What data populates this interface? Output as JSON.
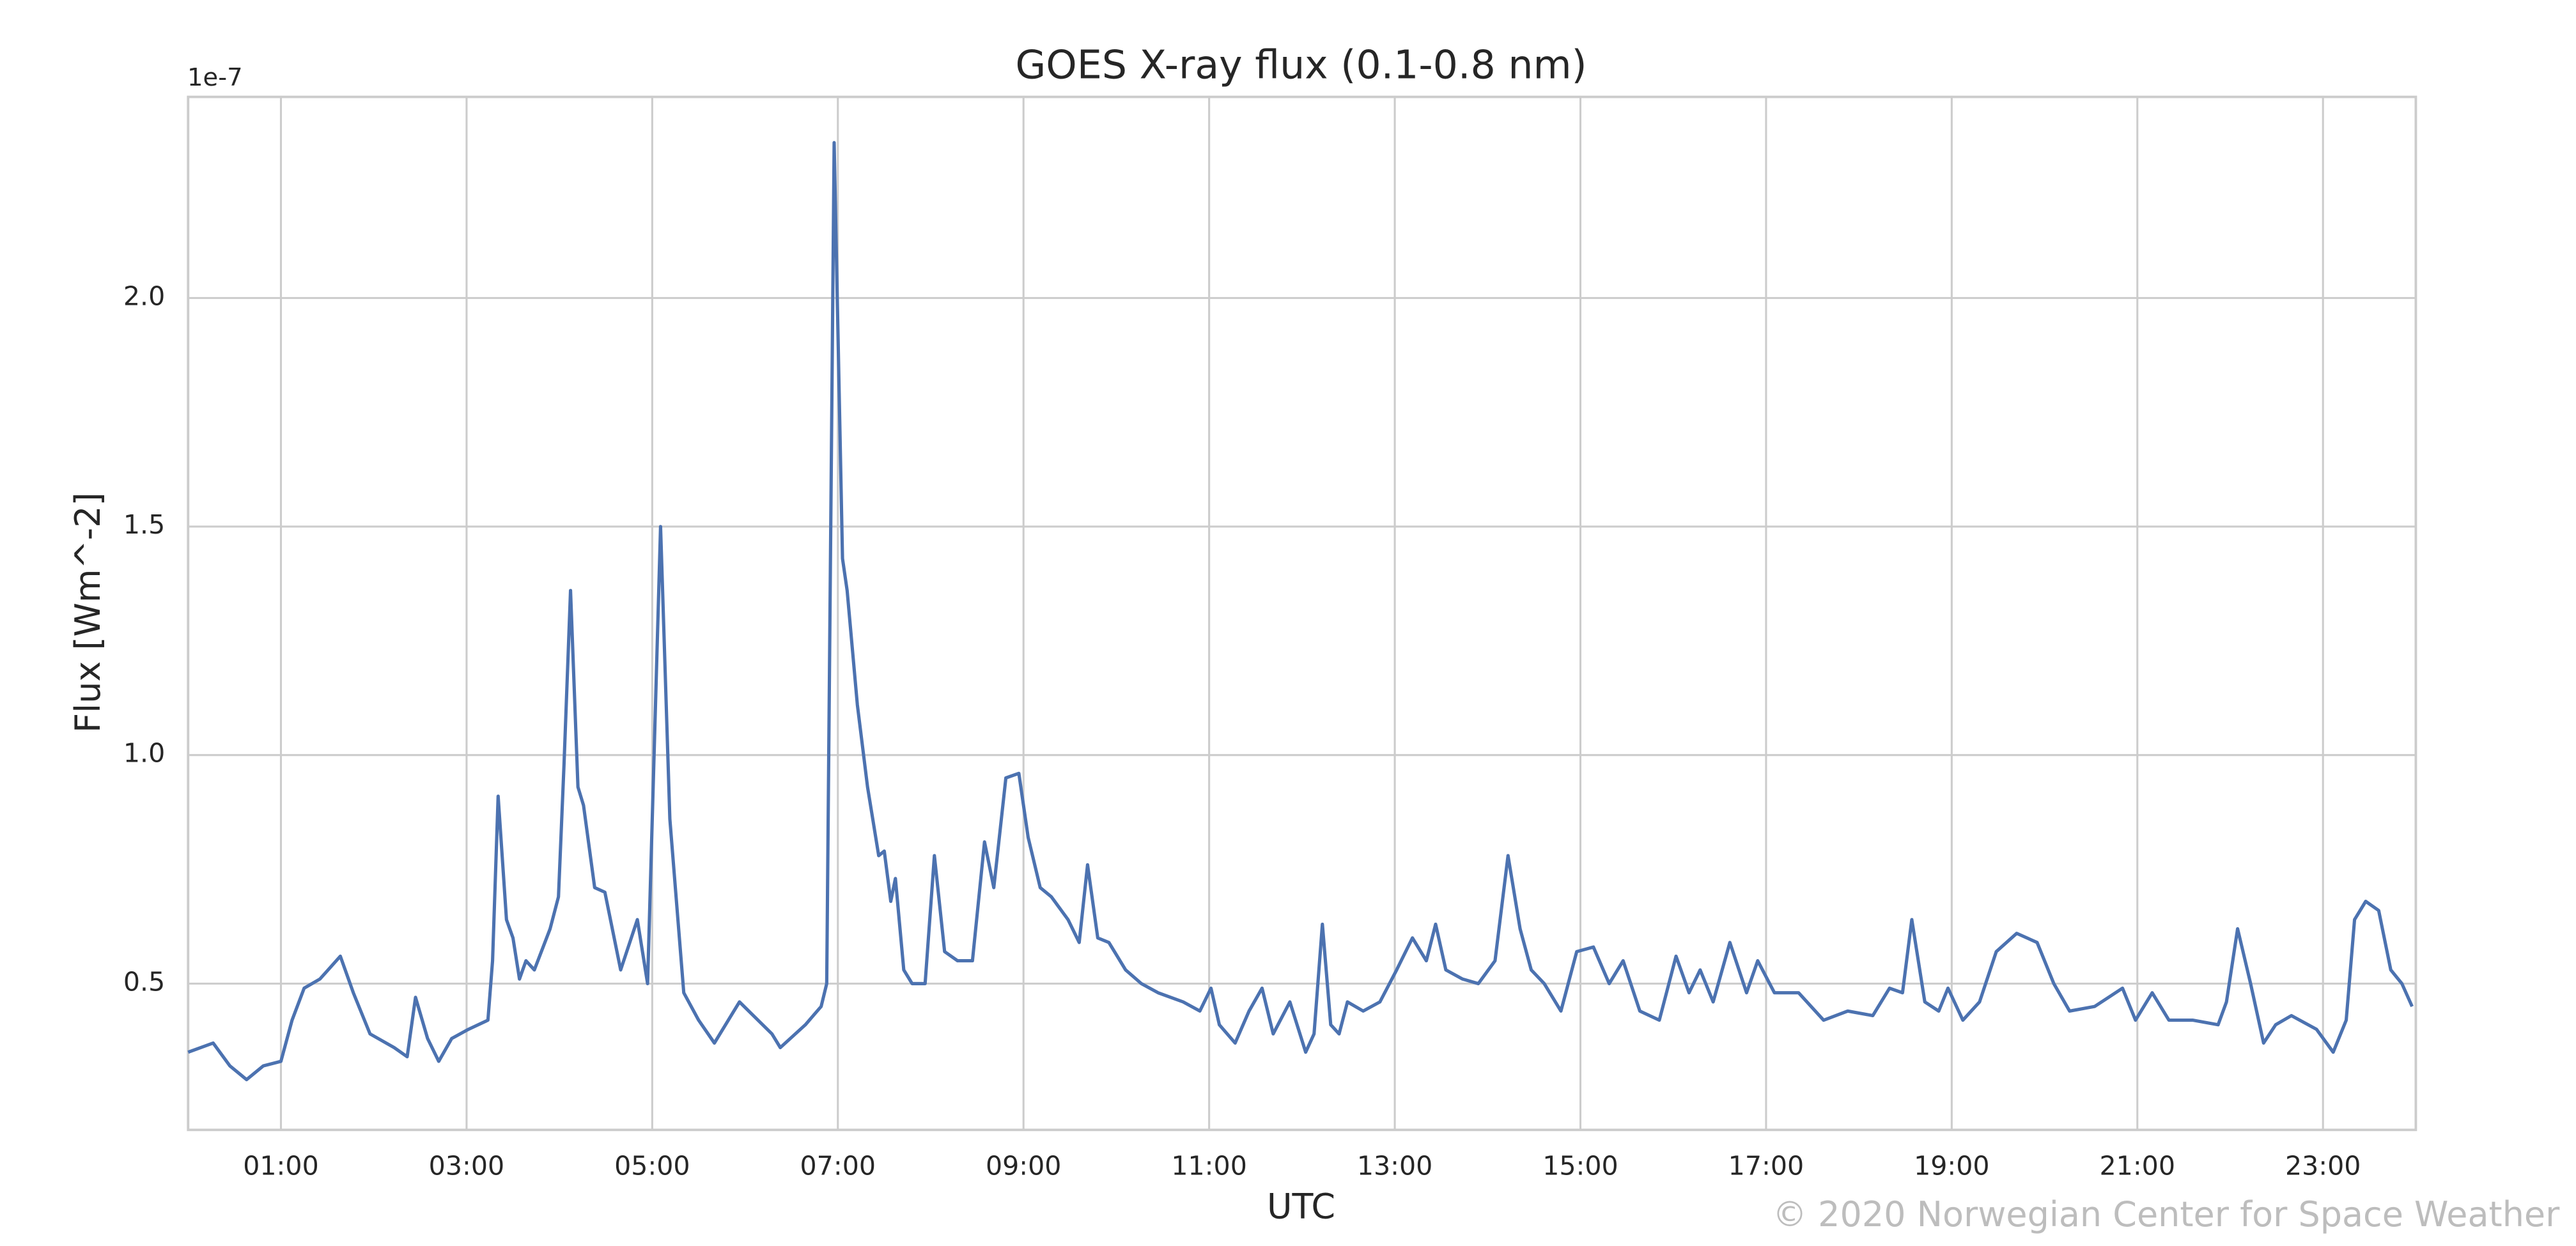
{
  "chart_data": {
    "type": "line",
    "title": "GOES X-ray flux (0.1-0.8 nm)",
    "x_label": "UTC",
    "y_label": "Flux [Wm^-2]",
    "y_offset_label": "1e-7",
    "credit": "© 2020 Norwegian Center for Space Weather",
    "grid": true,
    "xlim": [
      0,
      24
    ],
    "ylim": [
      0.18,
      2.44
    ],
    "xticks": [
      {
        "value": 1,
        "label": "01:00"
      },
      {
        "value": 3,
        "label": "03:00"
      },
      {
        "value": 5,
        "label": "05:00"
      },
      {
        "value": 7,
        "label": "07:00"
      },
      {
        "value": 9,
        "label": "09:00"
      },
      {
        "value": 11,
        "label": "11:00"
      },
      {
        "value": 13,
        "label": "13:00"
      },
      {
        "value": 15,
        "label": "15:00"
      },
      {
        "value": 17,
        "label": "17:00"
      },
      {
        "value": 19,
        "label": "19:00"
      },
      {
        "value": 21,
        "label": "21:00"
      },
      {
        "value": 23,
        "label": "23:00"
      }
    ],
    "yticks": [
      0.5,
      {
        "value": 1,
        "label": "1.0"
      },
      1.5,
      {
        "value": 2,
        "label": "2.0"
      }
    ],
    "x": [
      0,
      0.27,
      0.45,
      0.63,
      0.81,
      1.0,
      1.12,
      1.25,
      1.42,
      1.64,
      1.78,
      1.96,
      2.22,
      2.36,
      2.45,
      2.58,
      2.7,
      2.84,
      3.02,
      3.23,
      3.28,
      3.34,
      3.43,
      3.5,
      3.57,
      3.64,
      3.73,
      3.9,
      3.99,
      4.05,
      4.12,
      4.2,
      4.26,
      4.38,
      4.49,
      4.66,
      4.84,
      4.95,
      5.09,
      5.19,
      5.34,
      5.5,
      5.67,
      5.94,
      6.29,
      6.38,
      6.65,
      6.82,
      6.88,
      6.96,
      7.05,
      7.1,
      7.21,
      7.32,
      7.44,
      7.5,
      7.57,
      7.62,
      7.71,
      7.8,
      7.94,
      8.04,
      8.15,
      8.29,
      8.45,
      8.58,
      8.68,
      8.81,
      8.95,
      9.05,
      9.18,
      9.3,
      9.48,
      9.6,
      9.69,
      9.8,
      9.92,
      10.1,
      10.27,
      10.45,
      10.72,
      10.9,
      11.02,
      11.11,
      11.28,
      11.43,
      11.57,
      11.69,
      11.87,
      12.04,
      12.13,
      12.22,
      12.31,
      12.4,
      12.49,
      12.66,
      12.84,
      13.02,
      13.19,
      13.34,
      13.44,
      13.55,
      13.73,
      13.9,
      14.08,
      14.22,
      14.35,
      14.47,
      14.61,
      14.79,
      14.96,
      15.14,
      15.31,
      15.46,
      15.64,
      15.85,
      16.03,
      16.17,
      16.29,
      16.43,
      16.61,
      16.79,
      16.91,
      17.09,
      17.35,
      17.62,
      17.88,
      18.15,
      18.33,
      18.47,
      18.57,
      18.71,
      18.86,
      18.96,
      19.12,
      19.3,
      19.48,
      19.7,
      19.92,
      20.1,
      20.27,
      20.54,
      20.84,
      20.98,
      21.16,
      21.34,
      21.6,
      21.87,
      21.96,
      22.08,
      22.22,
      22.36,
      22.49,
      22.66,
      22.93,
      23.11,
      23.25,
      23.34,
      23.46,
      23.6,
      23.73,
      23.85,
      23.96
    ],
    "series": [
      {
        "name": "Flux",
        "color": "#4c72b0",
        "values": [
          0.35,
          0.37,
          0.32,
          0.29,
          0.32,
          0.33,
          0.42,
          0.49,
          0.51,
          0.56,
          0.48,
          0.39,
          0.36,
          0.34,
          0.47,
          0.38,
          0.33,
          0.38,
          0.4,
          0.42,
          0.55,
          0.91,
          0.64,
          0.6,
          0.51,
          0.55,
          0.53,
          0.62,
          0.69,
          0.98,
          1.36,
          0.93,
          0.89,
          0.71,
          0.7,
          0.53,
          0.64,
          0.5,
          1.5,
          0.86,
          0.48,
          0.42,
          0.37,
          0.46,
          0.39,
          0.36,
          0.41,
          0.45,
          0.5,
          2.34,
          1.43,
          1.36,
          1.11,
          0.93,
          0.78,
          0.79,
          0.68,
          0.73,
          0.53,
          0.5,
          0.5,
          0.78,
          0.57,
          0.55,
          0.55,
          0.81,
          0.71,
          0.95,
          0.96,
          0.82,
          0.71,
          0.69,
          0.64,
          0.59,
          0.76,
          0.6,
          0.59,
          0.53,
          0.5,
          0.48,
          0.46,
          0.44,
          0.49,
          0.41,
          0.37,
          0.44,
          0.49,
          0.39,
          0.46,
          0.35,
          0.39,
          0.63,
          0.41,
          0.39,
          0.46,
          0.44,
          0.46,
          0.53,
          0.6,
          0.55,
          0.63,
          0.53,
          0.51,
          0.5,
          0.55,
          0.78,
          0.62,
          0.53,
          0.5,
          0.44,
          0.57,
          0.58,
          0.5,
          0.55,
          0.44,
          0.42,
          0.56,
          0.48,
          0.53,
          0.46,
          0.59,
          0.48,
          0.55,
          0.48,
          0.48,
          0.42,
          0.44,
          0.43,
          0.49,
          0.48,
          0.64,
          0.46,
          0.44,
          0.49,
          0.42,
          0.46,
          0.57,
          0.61,
          0.59,
          0.5,
          0.44,
          0.45,
          0.49,
          0.42,
          0.48,
          0.42,
          0.42,
          0.41,
          0.46,
          0.62,
          0.5,
          0.37,
          0.41,
          0.43,
          0.4,
          0.35,
          0.42,
          0.64,
          0.68,
          0.66,
          0.53,
          0.5,
          0.45
        ]
      }
    ]
  }
}
